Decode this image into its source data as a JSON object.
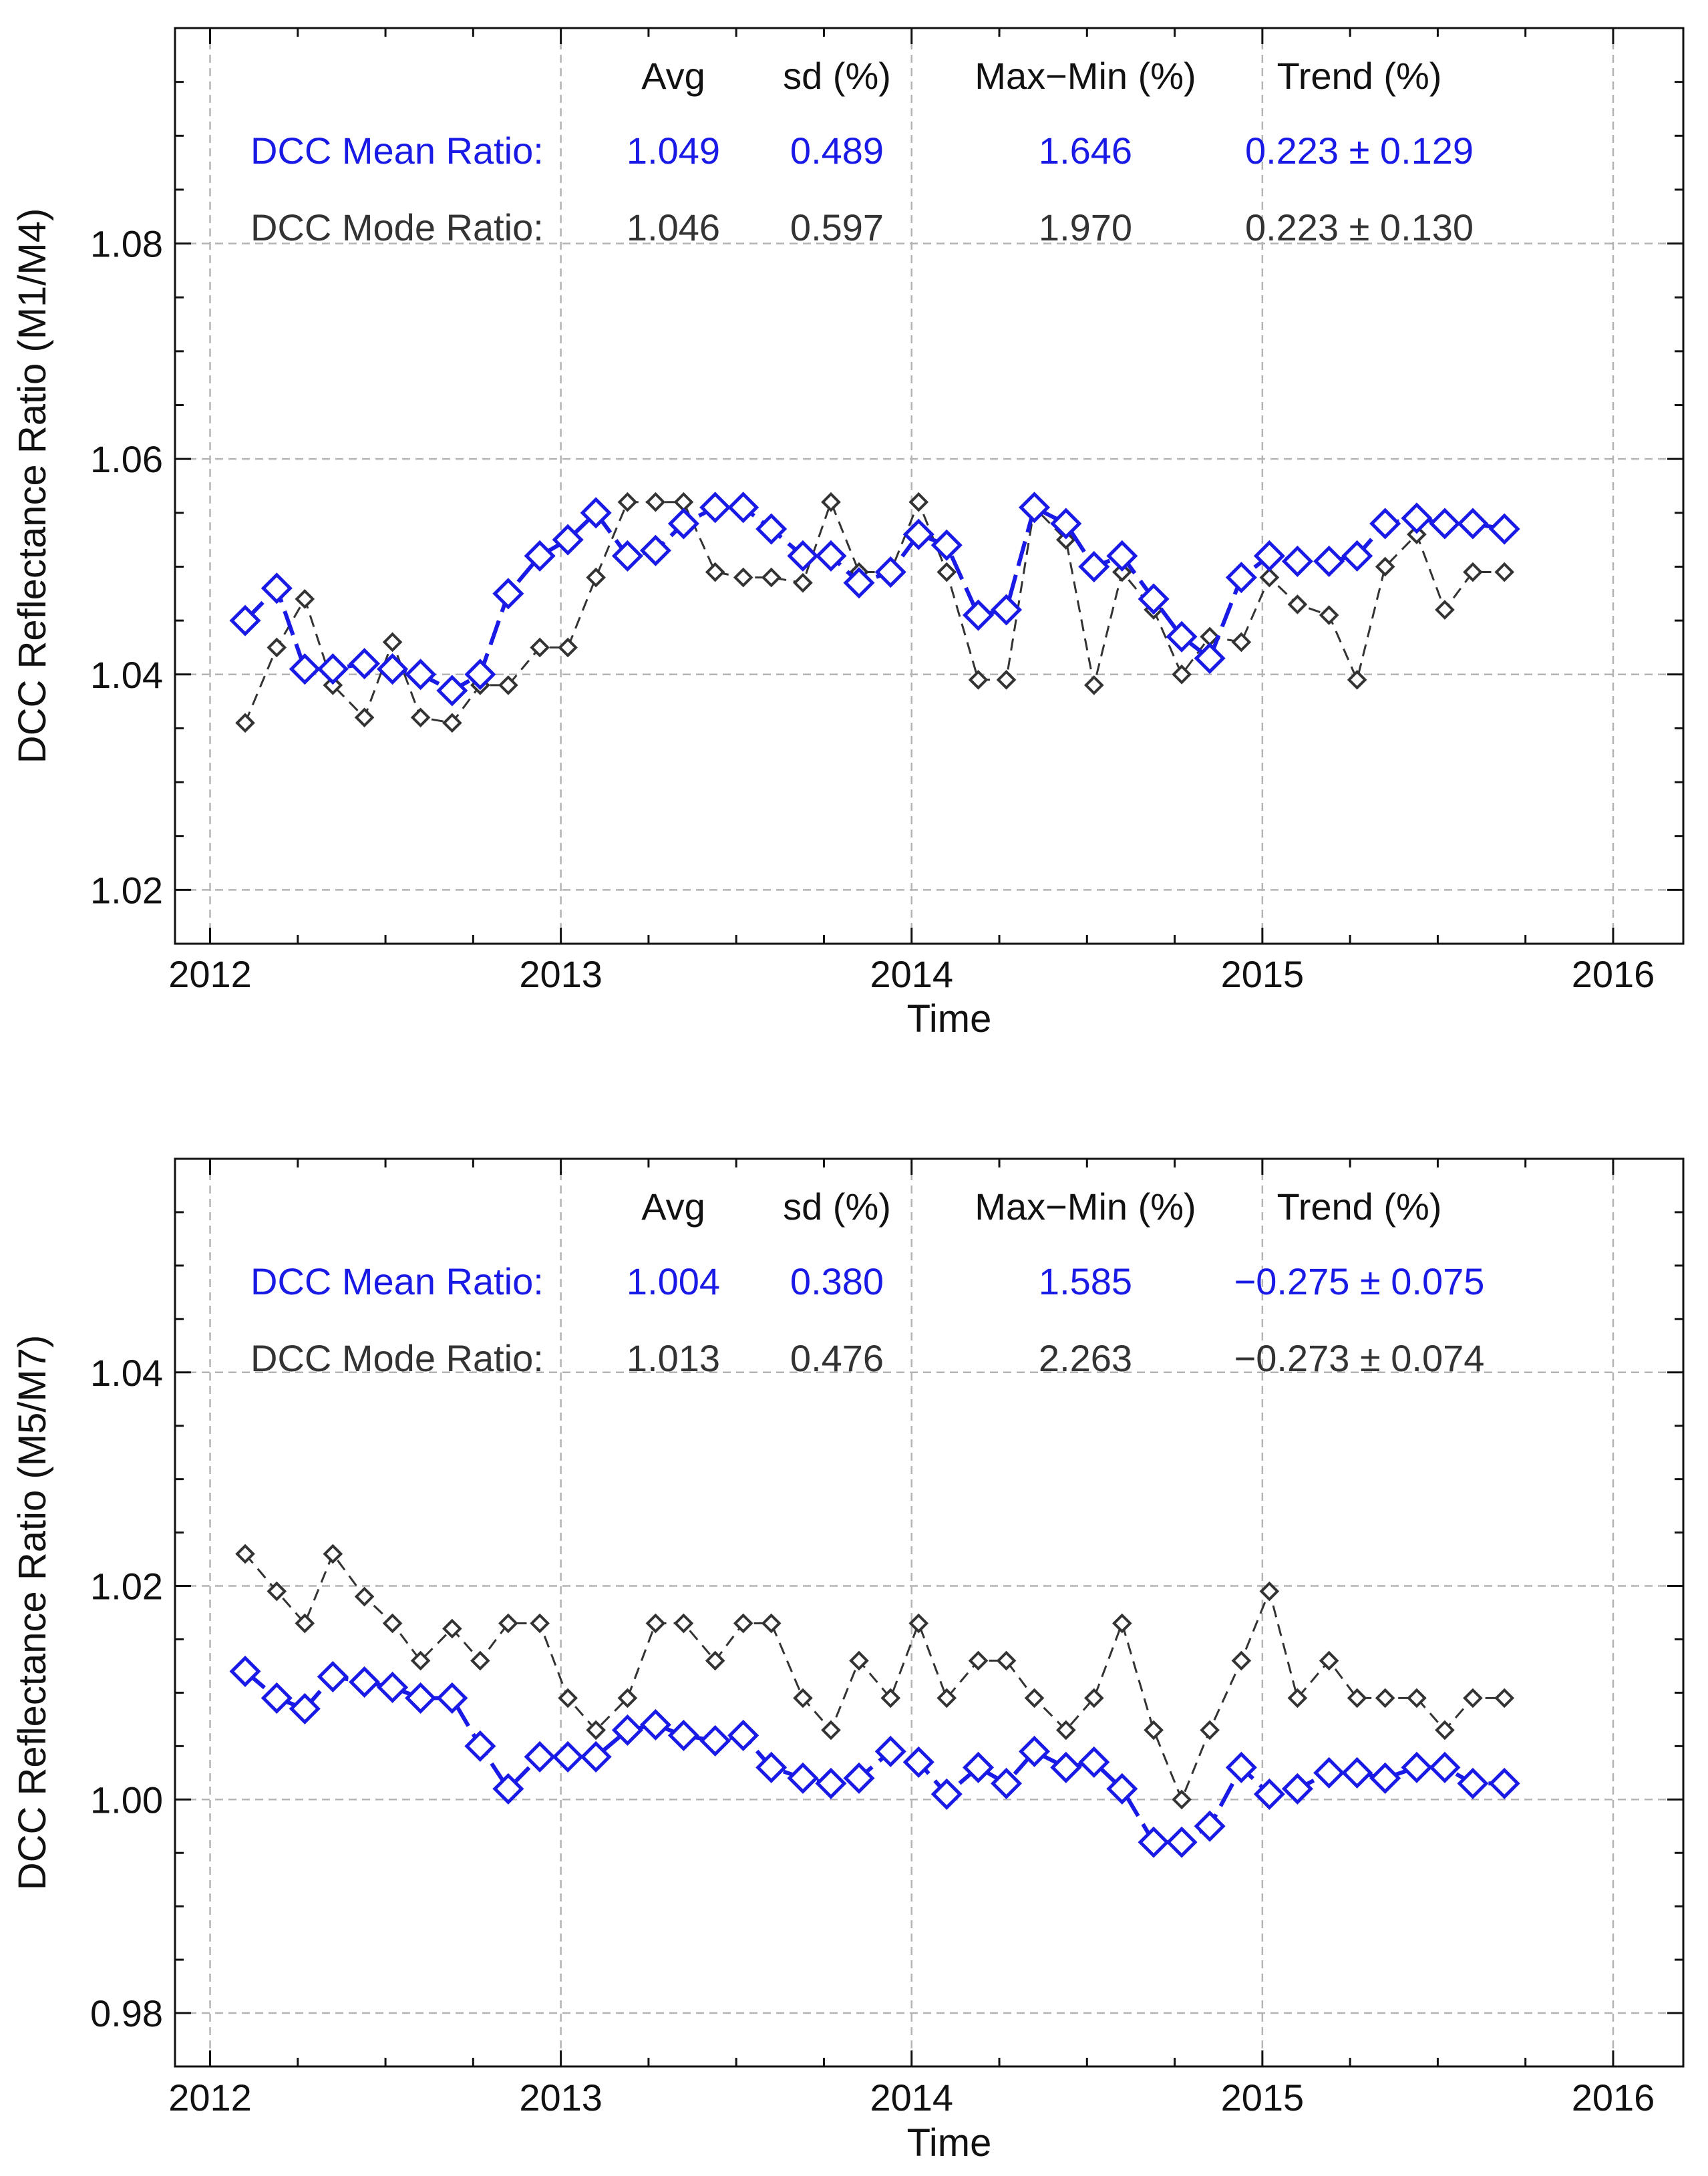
{
  "chart_data": [
    {
      "type": "line",
      "title": "",
      "xlabel": "Time",
      "ylabel": "DCC Reflectance Ratio (M1/M4)",
      "xlim": [
        2011.9,
        2016.2
      ],
      "ylim": [
        1.015,
        1.1
      ],
      "x_ticks": [
        2012,
        2013,
        2014,
        2015,
        2016
      ],
      "x_tick_labels": [
        "2012",
        "2013",
        "2014",
        "2015",
        "2016"
      ],
      "y_ticks": [
        1.02,
        1.04,
        1.06,
        1.08
      ],
      "y_tick_labels": [
        "1.02",
        "1.04",
        "1.06",
        "1.08"
      ],
      "grid": true,
      "stats_header": [
        "Avg",
        "sd (%)",
        "Max−Min (%)",
        "Trend (%)"
      ],
      "series": [
        {
          "name": "DCC Mean Ratio:",
          "color": "#1a1ae6",
          "stats": [
            "1.049",
            "0.489",
            "1.646",
            "0.223 ± 0.129"
          ],
          "x": [
            2012.1,
            2012.19,
            2012.27,
            2012.35,
            2012.44,
            2012.52,
            2012.6,
            2012.69,
            2012.77,
            2012.85,
            2012.94,
            2013.02,
            2013.1,
            2013.19,
            2013.27,
            2013.35,
            2013.44,
            2013.52,
            2013.6,
            2013.69,
            2013.77,
            2013.85,
            2013.94,
            2014.02,
            2014.1,
            2014.19,
            2014.27,
            2014.35,
            2014.44,
            2014.52,
            2014.6,
            2014.69,
            2014.77,
            2014.85,
            2014.94,
            2015.02,
            2015.1,
            2015.19,
            2015.27,
            2015.35,
            2015.44,
            2015.52,
            2015.6,
            2015.69
          ],
          "values": [
            1.045,
            1.048,
            1.0405,
            1.0405,
            1.041,
            1.0405,
            1.04,
            1.0385,
            1.04,
            1.0475,
            1.051,
            1.0525,
            1.055,
            1.051,
            1.0515,
            1.054,
            1.0555,
            1.0555,
            1.0535,
            1.051,
            1.051,
            1.0485,
            1.0495,
            1.053,
            1.052,
            1.0455,
            1.046,
            1.0555,
            1.054,
            1.05,
            1.051,
            1.047,
            1.0435,
            1.0415,
            1.049,
            1.051,
            1.0505,
            1.0505,
            1.051,
            1.054,
            1.0545,
            1.054,
            1.054,
            1.0535
          ]
        },
        {
          "name": "DCC Mode Ratio:",
          "color": "#333333",
          "stats": [
            "1.046",
            "0.597",
            "1.970",
            "0.223 ± 0.130"
          ],
          "x": [
            2012.1,
            2012.19,
            2012.27,
            2012.35,
            2012.44,
            2012.52,
            2012.6,
            2012.69,
            2012.77,
            2012.85,
            2012.94,
            2013.02,
            2013.1,
            2013.19,
            2013.27,
            2013.35,
            2013.44,
            2013.52,
            2013.6,
            2013.69,
            2013.77,
            2013.85,
            2013.94,
            2014.02,
            2014.1,
            2014.19,
            2014.27,
            2014.35,
            2014.44,
            2014.52,
            2014.6,
            2014.69,
            2014.77,
            2014.85,
            2014.94,
            2015.02,
            2015.1,
            2015.19,
            2015.27,
            2015.35,
            2015.44,
            2015.52,
            2015.6,
            2015.69
          ],
          "values": [
            1.0355,
            1.0425,
            1.047,
            1.039,
            1.036,
            1.043,
            1.036,
            1.0355,
            1.039,
            1.039,
            1.0425,
            1.0425,
            1.049,
            1.056,
            1.056,
            1.056,
            1.0495,
            1.049,
            1.049,
            1.0485,
            1.056,
            1.0495,
            1.0495,
            1.056,
            1.0495,
            1.0395,
            1.0395,
            1.0555,
            1.0525,
            1.039,
            1.0495,
            1.046,
            1.04,
            1.0435,
            1.043,
            1.049,
            1.0465,
            1.0455,
            1.0395,
            1.05,
            1.053,
            1.046,
            1.0495,
            1.0495
          ]
        }
      ]
    },
    {
      "type": "line",
      "title": "",
      "xlabel": "Time",
      "ylabel": "DCC Reflectance Ratio (M5/M7)",
      "xlim": [
        2011.9,
        2016.2
      ],
      "ylim": [
        0.975,
        1.06
      ],
      "x_ticks": [
        2012,
        2013,
        2014,
        2015,
        2016
      ],
      "x_tick_labels": [
        "2012",
        "2013",
        "2014",
        "2015",
        "2016"
      ],
      "y_ticks": [
        0.98,
        1.0,
        1.02,
        1.04
      ],
      "y_tick_labels": [
        "0.98",
        "1.00",
        "1.02",
        "1.04"
      ],
      "grid": true,
      "stats_header": [
        "Avg",
        "sd (%)",
        "Max−Min (%)",
        "Trend (%)"
      ],
      "series": [
        {
          "name": "DCC Mean Ratio:",
          "color": "#1a1ae6",
          "stats": [
            "1.004",
            "0.380",
            "1.585",
            "−0.275 ± 0.075"
          ],
          "x": [
            2012.1,
            2012.19,
            2012.27,
            2012.35,
            2012.44,
            2012.52,
            2012.6,
            2012.69,
            2012.77,
            2012.85,
            2012.94,
            2013.02,
            2013.1,
            2013.19,
            2013.27,
            2013.35,
            2013.44,
            2013.52,
            2013.6,
            2013.69,
            2013.77,
            2013.85,
            2013.94,
            2014.02,
            2014.1,
            2014.19,
            2014.27,
            2014.35,
            2014.44,
            2014.52,
            2014.6,
            2014.69,
            2014.77,
            2014.85,
            2014.94,
            2015.02,
            2015.1,
            2015.19,
            2015.27,
            2015.35,
            2015.44,
            2015.52,
            2015.6,
            2015.69
          ],
          "values": [
            1.012,
            1.0095,
            1.0085,
            1.0115,
            1.011,
            1.0105,
            1.0095,
            1.0095,
            1.005,
            1.001,
            1.004,
            1.004,
            1.004,
            1.0065,
            1.007,
            1.006,
            1.0055,
            1.006,
            1.003,
            1.002,
            1.0015,
            1.002,
            1.0045,
            1.0035,
            1.0005,
            1.003,
            1.0015,
            1.0045,
            1.003,
            1.0035,
            1.001,
            0.996,
            0.996,
            0.9975,
            1.003,
            1.0005,
            1.001,
            1.0025,
            1.0025,
            1.002,
            1.003,
            1.003,
            1.0015,
            1.0015
          ]
        },
        {
          "name": "DCC Mode Ratio:",
          "color": "#333333",
          "stats": [
            "1.013",
            "0.476",
            "2.263",
            "−0.273 ± 0.074"
          ],
          "x": [
            2012.1,
            2012.19,
            2012.27,
            2012.35,
            2012.44,
            2012.52,
            2012.6,
            2012.69,
            2012.77,
            2012.85,
            2012.94,
            2013.02,
            2013.1,
            2013.19,
            2013.27,
            2013.35,
            2013.44,
            2013.52,
            2013.6,
            2013.69,
            2013.77,
            2013.85,
            2013.94,
            2014.02,
            2014.1,
            2014.19,
            2014.27,
            2014.35,
            2014.44,
            2014.52,
            2014.6,
            2014.69,
            2014.77,
            2014.85,
            2014.94,
            2015.02,
            2015.1,
            2015.19,
            2015.27,
            2015.35,
            2015.44,
            2015.52,
            2015.6,
            2015.69
          ],
          "values": [
            1.023,
            1.0195,
            1.0165,
            1.023,
            1.019,
            1.0165,
            1.013,
            1.016,
            1.013,
            1.0165,
            1.0165,
            1.0095,
            1.0065,
            1.0095,
            1.0165,
            1.0165,
            1.013,
            1.0165,
            1.0165,
            1.0095,
            1.0065,
            1.013,
            1.0095,
            1.0165,
            1.0095,
            1.013,
            1.013,
            1.0095,
            1.0065,
            1.0095,
            1.0165,
            1.0065,
            1.0,
            1.0065,
            1.013,
            1.0195,
            1.0095,
            1.013,
            1.0095,
            1.0095,
            1.0095,
            1.0065,
            1.0095,
            1.0095
          ]
        }
      ]
    }
  ]
}
